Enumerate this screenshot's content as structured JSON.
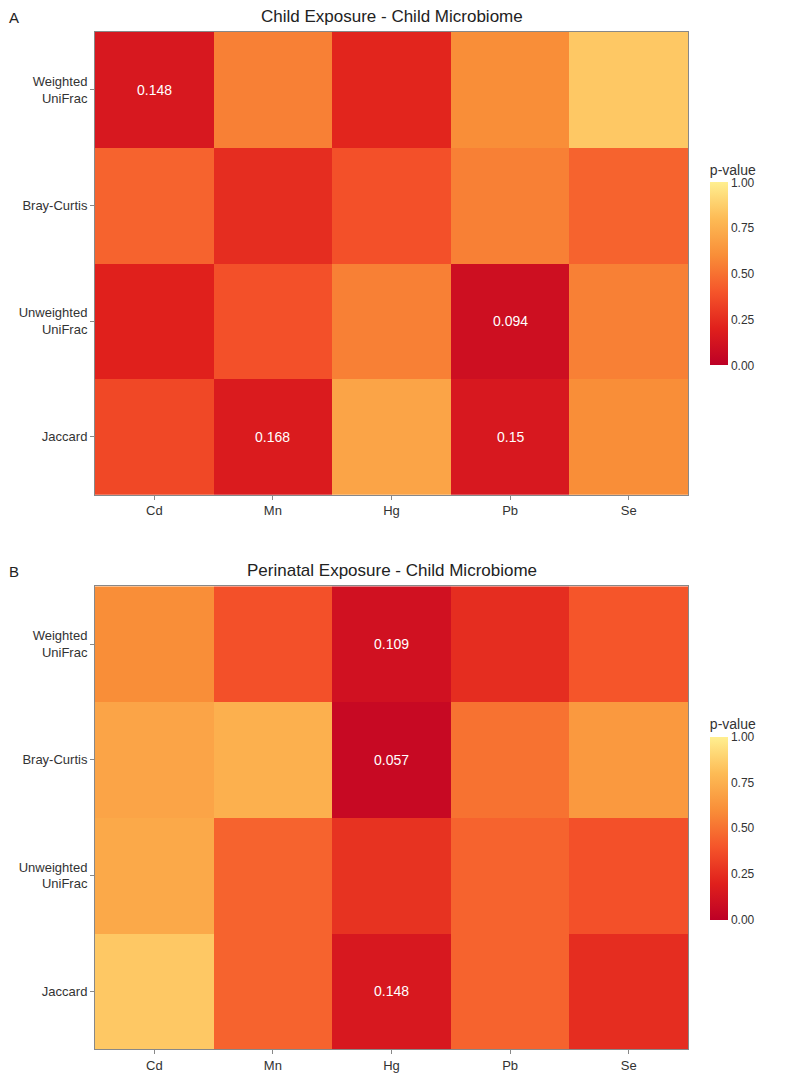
{
  "chart_data": [
    {
      "type": "heatmap",
      "panel": "A",
      "title": "Child Exposure - Child Microbiome",
      "x": [
        "Cd",
        "Mn",
        "Hg",
        "Pb",
        "Se"
      ],
      "y": [
        "Weighted UniFrac",
        "Bray-Curtis",
        "Unweighted UniFrac",
        "Jaccard"
      ],
      "cells": [
        [
          0.148,
          0.55,
          0.22,
          0.6,
          0.85
        ],
        [
          0.45,
          0.25,
          0.38,
          0.55,
          0.45
        ],
        [
          0.2,
          0.38,
          0.55,
          0.094,
          0.55
        ],
        [
          0.35,
          0.168,
          0.7,
          0.15,
          0.6
        ]
      ],
      "cell_labels": [
        [
          "0.148",
          null,
          null,
          null,
          null
        ],
        [
          null,
          null,
          null,
          null,
          null
        ],
        [
          null,
          null,
          null,
          "0.094",
          null
        ],
        [
          null,
          "0.168",
          null,
          "0.15",
          null
        ]
      ],
      "colorbar_title": "p-value",
      "zlim": [
        0,
        1
      ],
      "zticks": [
        {
          "value": 0,
          "label": "0.00"
        },
        {
          "value": 0.25,
          "label": "0.25"
        },
        {
          "value": 0.5,
          "label": "0.50"
        },
        {
          "value": 0.75,
          "label": "0.75"
        },
        {
          "value": 1,
          "label": "1.00"
        }
      ]
    },
    {
      "type": "heatmap",
      "panel": "B",
      "title": "Perinatal Exposure - Child Microbiome",
      "x": [
        "Cd",
        "Mn",
        "Hg",
        "Pb",
        "Se"
      ],
      "y": [
        "Weighted UniFrac",
        "Bray-Curtis",
        "Unweighted UniFrac",
        "Jaccard"
      ],
      "cells": [
        [
          0.6,
          0.38,
          0.109,
          0.25,
          0.4
        ],
        [
          0.7,
          0.75,
          0.057,
          0.5,
          0.65
        ],
        [
          0.72,
          0.45,
          0.27,
          0.45,
          0.38
        ],
        [
          0.85,
          0.45,
          0.148,
          0.45,
          0.25
        ]
      ],
      "cell_labels": [
        [
          null,
          null,
          "0.109",
          null,
          null
        ],
        [
          null,
          null,
          "0.057",
          null,
          null
        ],
        [
          null,
          null,
          null,
          null,
          null
        ],
        [
          null,
          null,
          "0.148",
          null,
          null
        ]
      ],
      "colorbar_title": "p-value",
      "zlim": [
        0,
        1
      ],
      "zticks": [
        {
          "value": 0,
          "label": "0.00"
        },
        {
          "value": 0.25,
          "label": "0.25"
        },
        {
          "value": 0.5,
          "label": "0.50"
        },
        {
          "value": 0.75,
          "label": "0.75"
        },
        {
          "value": 1,
          "label": "1.00"
        }
      ]
    }
  ]
}
